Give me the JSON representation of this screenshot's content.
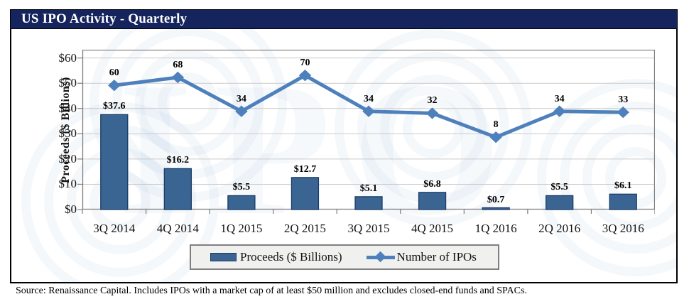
{
  "header": {
    "title": "US IPO Activity - Quarterly"
  },
  "footer": {
    "source_note": "Source: Renaissance Capital. Includes IPOs with a market cap of at least $50 million and excludes closed-end funds and SPACs."
  },
  "chart_data": {
    "type": "bar",
    "title": "US IPO Activity - Quarterly",
    "categories": [
      "3Q 2014",
      "4Q 2014",
      "1Q 2015",
      "2Q 2015",
      "3Q 2015",
      "4Q 2015",
      "1Q 2016",
      "2Q 2016",
      "3Q 2016"
    ],
    "series": [
      {
        "name": "Proceeds ($ Billions)",
        "type": "bar",
        "values": [
          37.6,
          16.2,
          5.5,
          12.7,
          5.1,
          6.8,
          0.7,
          5.5,
          6.1
        ],
        "value_labels": [
          "$37.6",
          "$16.2",
          "$5.5",
          "$12.7",
          "$5.1",
          "$6.8",
          "$0.7",
          "$5.5",
          "$6.1"
        ]
      },
      {
        "name": "Number of IPOs",
        "type": "line",
        "values": [
          60,
          68,
          34,
          70,
          34,
          32,
          8,
          34,
          33
        ],
        "value_labels": [
          "60",
          "68",
          "34",
          "70",
          "34",
          "32",
          "8",
          "34",
          "33"
        ]
      }
    ],
    "xlabel": "",
    "ylabel": "Proceeds ($ Billions)",
    "ylim": [
      0,
      63
    ],
    "yticks": [
      0,
      10,
      20,
      30,
      40,
      50,
      60
    ],
    "ytick_labels": [
      "$0",
      "$10",
      "$20",
      "$30",
      "$40",
      "$50",
      "$60"
    ],
    "grid": true,
    "legend_position": "bottom"
  },
  "colors": {
    "title_bar_bg": "#15245D",
    "bar_fill": "#3A6492",
    "bar_border": "#1A3C66",
    "line": "#4E80BC",
    "gridline": "#CACACA",
    "plot_border": "#7D7D7D",
    "legend_bg": "#F0F0EE",
    "legend_border": "#7F7F7F",
    "watermark": "#4F81BD"
  }
}
